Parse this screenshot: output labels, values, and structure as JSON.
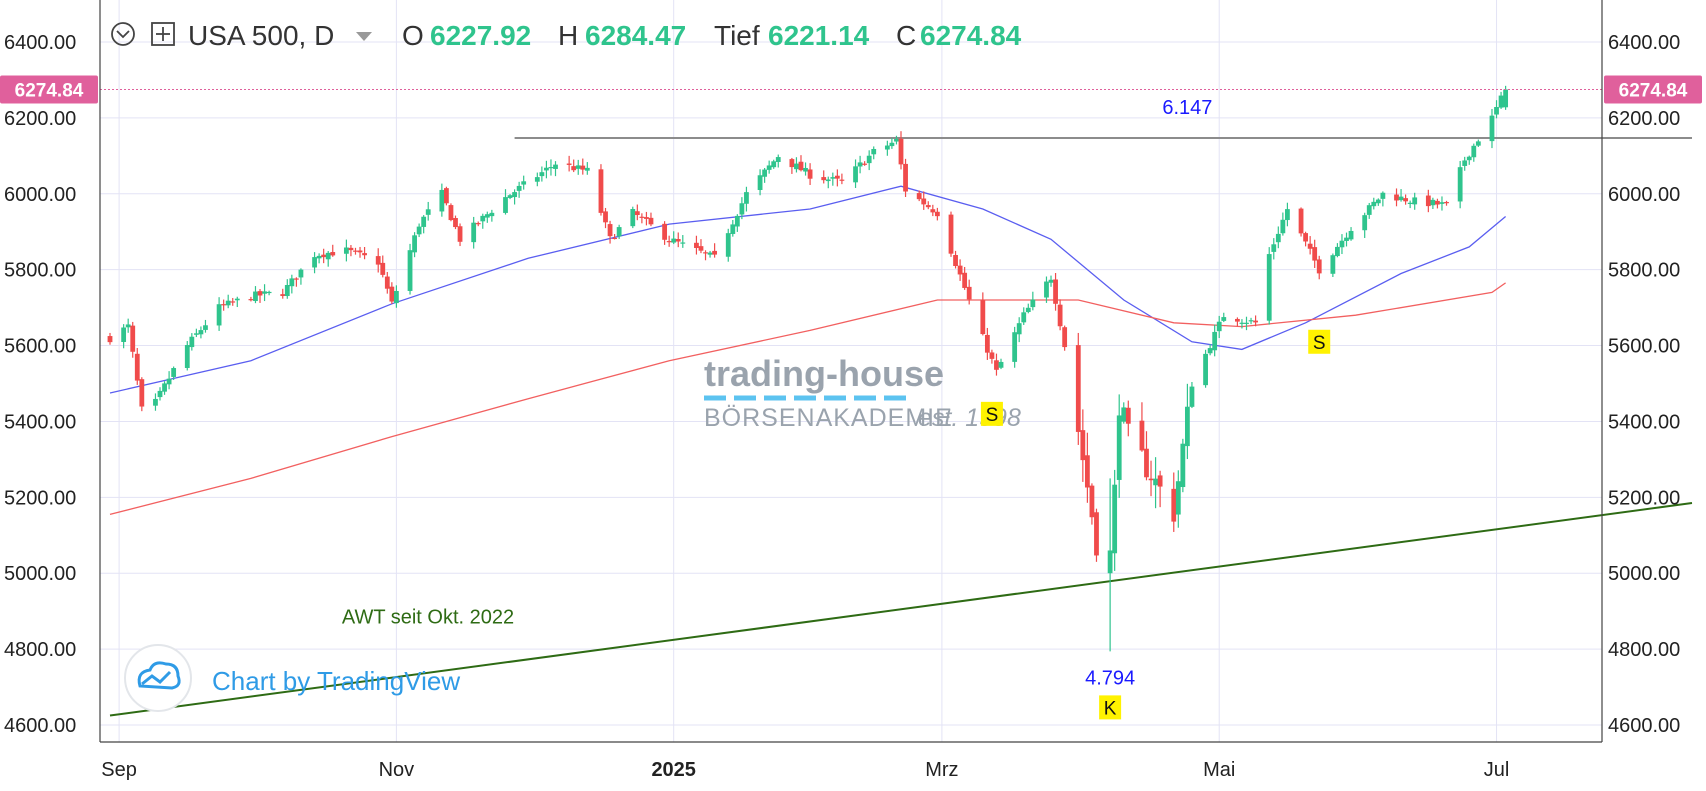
{
  "header": {
    "symbol": "USA 500, D",
    "o_label": "O",
    "o_value": "6227.92",
    "h_label": "H",
    "h_value": "6284.47",
    "l_label": "Tief",
    "l_value": "6221.14",
    "c_label": "C",
    "c_value": "6274.84"
  },
  "price_tag": "6274.84",
  "colors": {
    "up": "#2fc48d",
    "down": "#f04b4b",
    "ma_blue": "#5a5ef0",
    "ma_red": "#f26060",
    "trend": "#2e6b14",
    "price_tag": "#e0609c",
    "watermark": "#9aa3ad",
    "watermark_accent": "#5cc3f0",
    "marker_bg": "#fff200",
    "annotation_blue": "#1a1aff",
    "tv_blue": "#2f9be6"
  },
  "watermark": {
    "line1": "trading-house",
    "line2": "BÖRSENAKADEMIE",
    "line3": "est. 1998"
  },
  "branding": "Chart by TradingView",
  "chart_data": {
    "type": "candlestick",
    "ylim": [
      4600,
      6500
    ],
    "y_ticks": [
      {
        "value": 6400,
        "label": "6400.00"
      },
      {
        "value": 6200,
        "label": "6200.00"
      },
      {
        "value": 6000,
        "label": "6000.00"
      },
      {
        "value": 5800,
        "label": "5800.00"
      },
      {
        "value": 5600,
        "label": "5600.00"
      },
      {
        "value": 5400,
        "label": "5400.00"
      },
      {
        "value": 5200,
        "label": "5200.00"
      },
      {
        "value": 5000,
        "label": "5000.00"
      },
      {
        "value": 4800,
        "label": "4800.00"
      },
      {
        "value": 4600,
        "label": "4600.00"
      }
    ],
    "x_ticks": [
      {
        "date": "2024-09-01",
        "label": "Sep",
        "bold": false
      },
      {
        "date": "2024-11-01",
        "label": "Nov",
        "bold": false
      },
      {
        "date": "2025-01-01",
        "label": "2025",
        "bold": true
      },
      {
        "date": "2025-03-01",
        "label": "Mrz",
        "bold": false
      },
      {
        "date": "2025-05-01",
        "label": "Mai",
        "bold": false
      },
      {
        "date": "2025-07-01",
        "label": "Jul",
        "bold": false
      }
    ],
    "x_range": [
      "2024-08-30",
      "2025-08-13"
    ],
    "last_close": 6274.84,
    "price_path": [
      [
        "2024-08-30",
        5620
      ],
      [
        "2024-09-03",
        5650
      ],
      [
        "2024-09-06",
        5430
      ],
      [
        "2024-09-09",
        5450
      ],
      [
        "2024-09-16",
        5600
      ],
      [
        "2024-09-23",
        5700
      ],
      [
        "2024-09-30",
        5730
      ],
      [
        "2024-10-07",
        5740
      ],
      [
        "2024-10-14",
        5840
      ],
      [
        "2024-10-21",
        5850
      ],
      [
        "2024-10-28",
        5820
      ],
      [
        "2024-10-31",
        5710
      ],
      [
        "2024-11-06",
        5920
      ],
      [
        "2024-11-11",
        6000
      ],
      [
        "2024-11-15",
        5880
      ],
      [
        "2024-11-25",
        5990
      ],
      [
        "2024-12-06",
        6080
      ],
      [
        "2024-12-13",
        6060
      ],
      [
        "2024-12-18",
        5880
      ],
      [
        "2024-12-23",
        5950
      ],
      [
        "2024-12-31",
        5880
      ],
      [
        "2025-01-10",
        5830
      ],
      [
        "2025-01-17",
        6000
      ],
      [
        "2025-01-24",
        6100
      ],
      [
        "2025-01-31",
        6050
      ],
      [
        "2025-02-07",
        6030
      ],
      [
        "2025-02-14",
        6110
      ],
      [
        "2025-02-19",
        6140
      ],
      [
        "2025-02-21",
        6010
      ],
      [
        "2025-02-28",
        5950
      ],
      [
        "2025-03-10",
        5620
      ],
      [
        "2025-03-13",
        5530
      ],
      [
        "2025-03-19",
        5680
      ],
      [
        "2025-03-25",
        5780
      ],
      [
        "2025-03-28",
        5600
      ],
      [
        "2025-04-04",
        5080
      ],
      [
        "2025-04-07",
        4980
      ],
      [
        "2025-04-09",
        5450
      ],
      [
        "2025-04-11",
        5360
      ],
      [
        "2025-04-21",
        5160
      ],
      [
        "2025-04-25",
        5500
      ],
      [
        "2025-05-02",
        5680
      ],
      [
        "2025-05-09",
        5660
      ],
      [
        "2025-05-12",
        5840
      ],
      [
        "2025-05-16",
        5960
      ],
      [
        "2025-05-23",
        5800
      ],
      [
        "2025-05-30",
        5910
      ],
      [
        "2025-06-06",
        6000
      ],
      [
        "2025-06-13",
        5980
      ],
      [
        "2025-06-20",
        5970
      ],
      [
        "2025-06-24",
        6090
      ],
      [
        "2025-06-30",
        6200
      ],
      [
        "2025-07-03",
        6274.84
      ]
    ],
    "series": [
      {
        "name": "",
        "color_key": "ma_blue",
        "points": [
          [
            "2024-08-30",
            5475
          ],
          [
            "2024-09-30",
            5560
          ],
          [
            "2024-10-31",
            5710
          ],
          [
            "2024-11-30",
            5830
          ],
          [
            "2024-12-31",
            5920
          ],
          [
            "2025-01-31",
            5960
          ],
          [
            "2025-02-20",
            6020
          ],
          [
            "2025-03-10",
            5960
          ],
          [
            "2025-03-25",
            5880
          ],
          [
            "2025-04-10",
            5720
          ],
          [
            "2025-04-25",
            5610
          ],
          [
            "2025-05-06",
            5590
          ],
          [
            "2025-05-20",
            5660
          ],
          [
            "2025-06-10",
            5790
          ],
          [
            "2025-06-25",
            5860
          ],
          [
            "2025-07-03",
            5940
          ]
        ]
      },
      {
        "name": "",
        "color_key": "ma_red",
        "points": [
          [
            "2024-08-30",
            5155
          ],
          [
            "2024-09-30",
            5250
          ],
          [
            "2024-10-31",
            5360
          ],
          [
            "2024-11-30",
            5460
          ],
          [
            "2024-12-31",
            5560
          ],
          [
            "2025-01-31",
            5640
          ],
          [
            "2025-02-28",
            5720
          ],
          [
            "2025-03-31",
            5720
          ],
          [
            "2025-04-21",
            5660
          ],
          [
            "2025-05-06",
            5650
          ],
          [
            "2025-05-31",
            5680
          ],
          [
            "2025-06-30",
            5740
          ],
          [
            "2025-07-03",
            5765
          ]
        ]
      }
    ],
    "lines": [
      {
        "name": "resistance",
        "label": "6.147",
        "value": 6147,
        "from": "2024-11-27",
        "to": "2025-08-13",
        "label_date": "2025-04-24"
      },
      {
        "name": "trendline",
        "label": "AWT seit Okt. 2022",
        "from": [
          "2024-08-30",
          4625
        ],
        "to": [
          "2025-08-13",
          5185
        ],
        "label_date": "2024-10-20"
      }
    ],
    "annotations": [
      {
        "text": "4.794",
        "date": "2025-04-07",
        "value": 4794,
        "kind": "low"
      },
      {
        "text": "K",
        "date": "2025-04-07",
        "kind": "marker"
      },
      {
        "text": "S",
        "date": "2025-03-12",
        "value": 5420,
        "kind": "marker"
      },
      {
        "text": "S",
        "date": "2025-05-23",
        "value": 5610,
        "kind": "marker"
      }
    ]
  }
}
